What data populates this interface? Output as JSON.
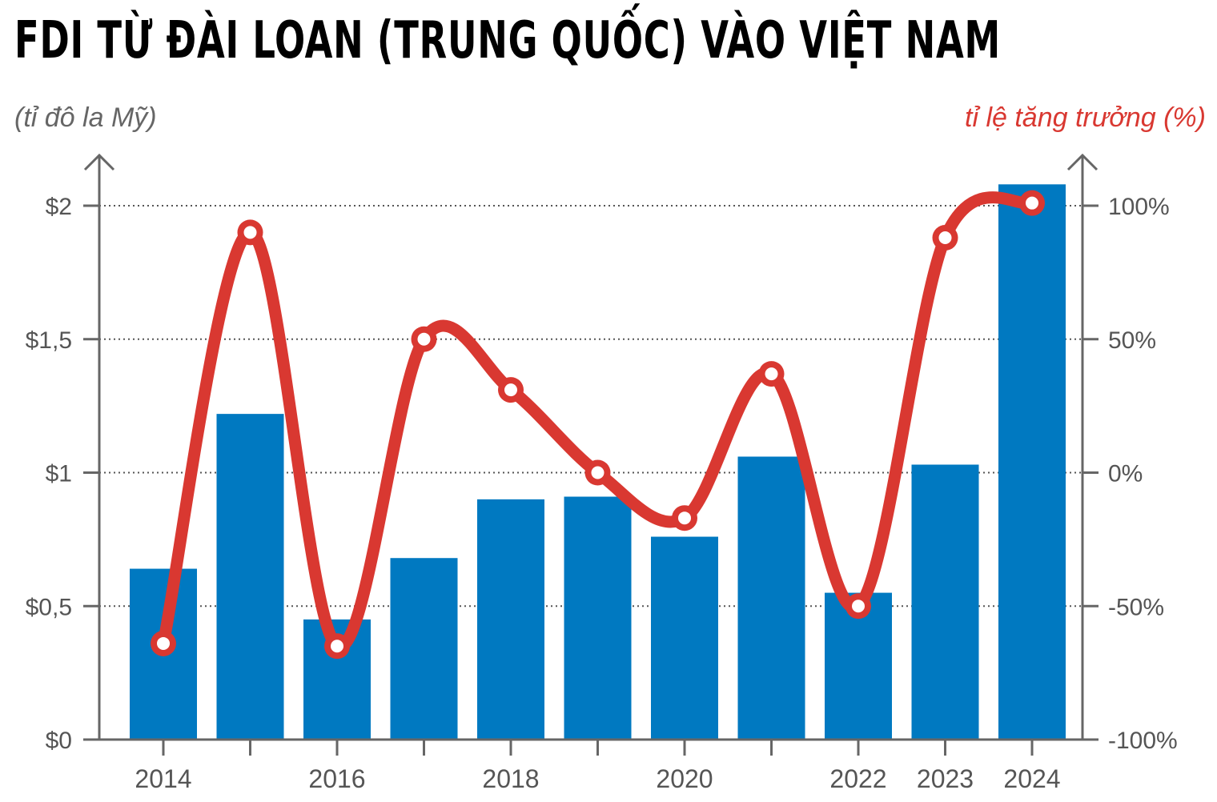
{
  "chart_data": {
    "type": "bar+line",
    "title": "FDI TỪ ĐÀI LOAN (TRUNG QUỐC) VÀO VIỆT NAM",
    "left_axis_label": "(tỉ đô la Mỹ)",
    "right_axis_label": "tỉ lệ tăng trưởng (%)",
    "years": [
      2014,
      2015,
      2016,
      2017,
      2018,
      2019,
      2020,
      2021,
      2022,
      2023,
      2024
    ],
    "x_tick_labels": [
      "2014",
      "",
      "2016",
      "",
      "2018",
      "",
      "2020",
      "",
      "2022",
      "2023",
      "2024"
    ],
    "bars": {
      "name": "FDI",
      "values": [
        0.64,
        1.22,
        0.45,
        0.68,
        0.9,
        0.91,
        0.76,
        1.06,
        0.55,
        1.03,
        2.08
      ],
      "color": "#0079c1"
    },
    "line": {
      "name": "tỉ lệ tăng trưởng",
      "values": [
        -64,
        90,
        -65,
        50,
        31,
        0,
        -17,
        37,
        -50,
        88,
        101
      ],
      "color": "#d93831"
    },
    "left_axis": {
      "ylim": [
        0,
        2
      ],
      "ticks": [
        0,
        0.5,
        1,
        1.5,
        2
      ],
      "tick_labels": [
        "$0",
        "$0,5",
        "$1",
        "$1,5",
        "$2"
      ]
    },
    "right_axis": {
      "ylim": [
        -100,
        100
      ],
      "ticks": [
        -100,
        -50,
        0,
        50,
        100
      ],
      "tick_labels": [
        "-100%",
        "-50%",
        "0%",
        "50%",
        "100%"
      ]
    },
    "grid": true
  }
}
